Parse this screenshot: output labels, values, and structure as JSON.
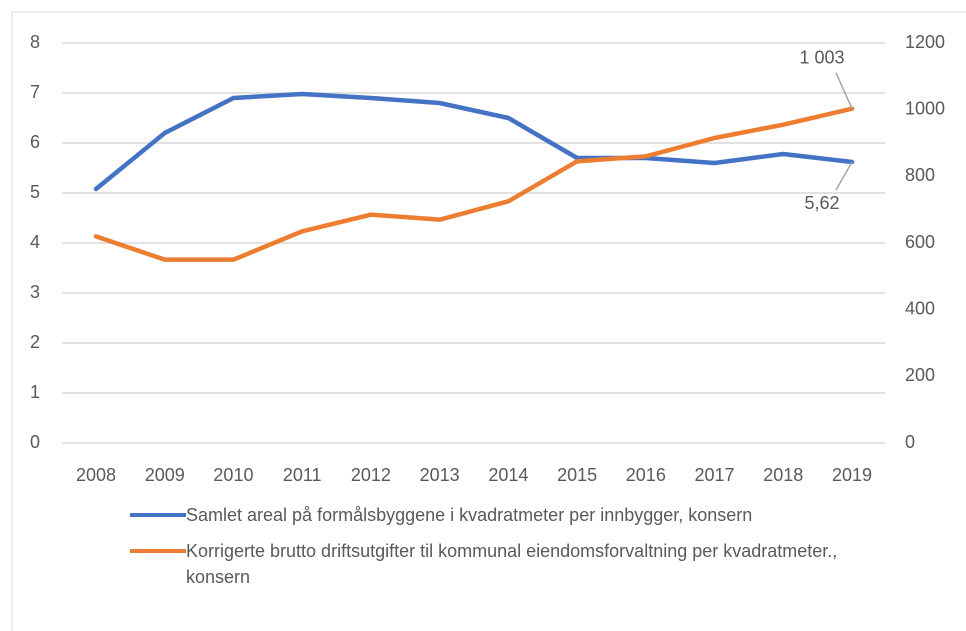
{
  "chart_data": {
    "type": "line",
    "categories": [
      "2008",
      "2009",
      "2010",
      "2011",
      "2012",
      "2013",
      "2014",
      "2015",
      "2016",
      "2017",
      "2018",
      "2019"
    ],
    "series": [
      {
        "name": "Samlet areal på formålsbyggene i kvadratmeter per innbygger, konsern",
        "color": "#4472c4",
        "values": [
          5.08,
          6.2,
          6.9,
          6.98,
          6.9,
          6.8,
          6.5,
          5.7,
          5.7,
          5.6,
          5.78,
          5.62
        ],
        "value_labels": [
          null,
          null,
          null,
          null,
          null,
          null,
          null,
          null,
          null,
          null,
          null,
          "5,62"
        ]
      },
      {
        "name": "Korrigerte brutto driftsutgifter til kommunal eiendomsforvaltning per kvadratmeter., konsern",
        "color": "#ed7d31",
        "axis": "y2",
        "values": [
          620,
          550,
          550,
          635,
          685,
          670,
          725,
          845,
          860,
          915,
          955,
          1003
        ],
        "value_labels": [
          null,
          null,
          null,
          null,
          null,
          null,
          null,
          null,
          null,
          null,
          null,
          "1 003"
        ]
      }
    ],
    "ylim": [
      0,
      8
    ],
    "yticks": [
      0,
      1,
      2,
      3,
      4,
      5,
      6,
      7,
      8
    ],
    "y2lim": [
      0,
      1200
    ],
    "y2ticks": [
      0,
      200,
      400,
      600,
      800,
      1000,
      1200
    ],
    "grid": true,
    "legend": "bottom"
  }
}
